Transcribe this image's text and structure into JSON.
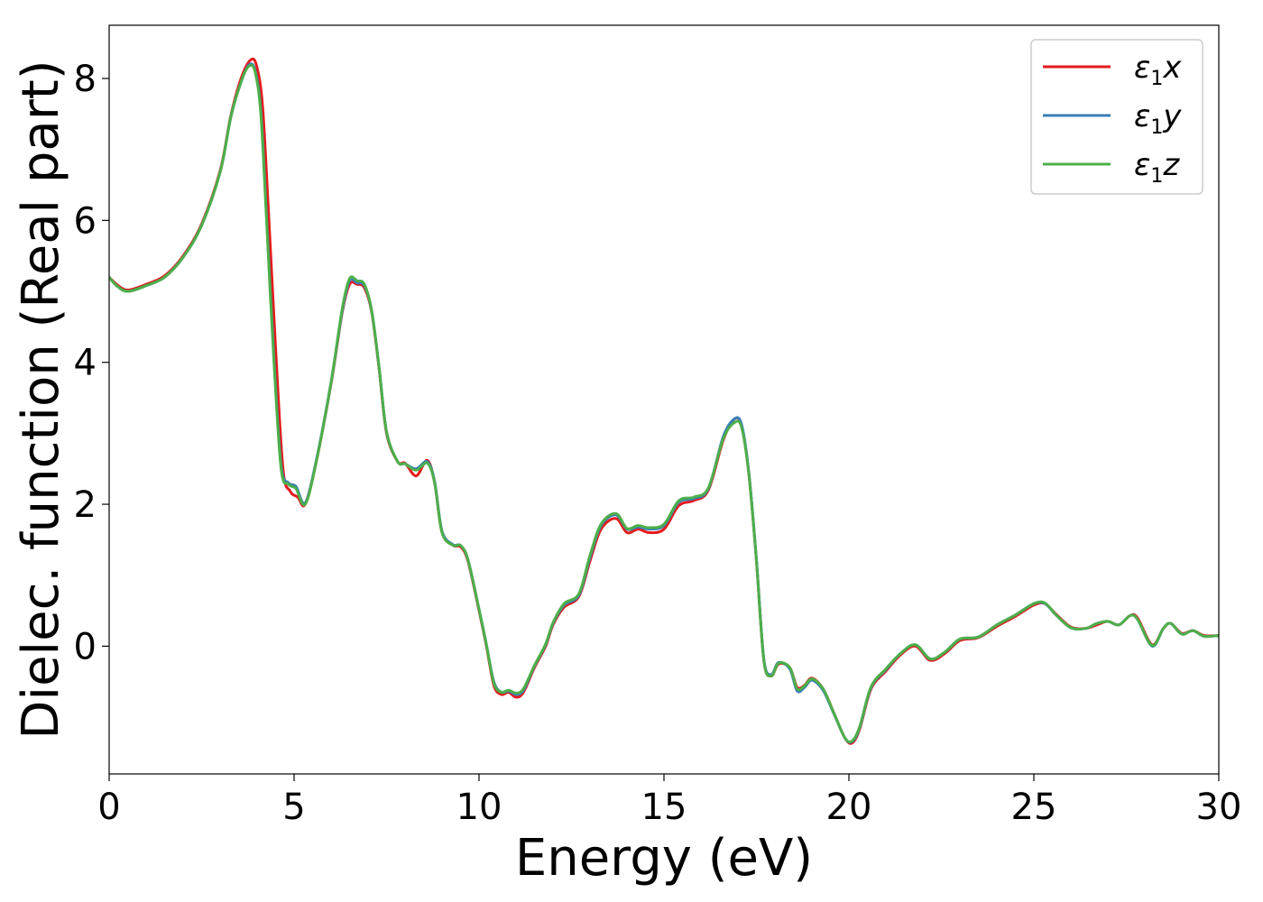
{
  "chart_data": {
    "type": "line",
    "xlabel": "Energy (eV)",
    "ylabel": "Dielec. function (Real part)",
    "xlim": [
      0,
      30
    ],
    "ylim": [
      -1.8,
      8.75
    ],
    "xticks": [
      0,
      5,
      10,
      15,
      20,
      25,
      30
    ],
    "yticks": [
      0,
      2,
      4,
      6,
      8
    ],
    "grid": false,
    "legend_position": "top-right",
    "series": [
      {
        "name": "ε1x",
        "name_base": "ε",
        "name_sub": "1",
        "name_tail": "x",
        "color": "#e41a1c",
        "x": [
          0,
          0.2,
          0.5,
          1.0,
          1.5,
          2.0,
          2.5,
          3.0,
          3.3,
          3.6,
          3.85,
          4.0,
          4.15,
          4.3,
          4.5,
          4.7,
          4.9,
          5.1,
          5.3,
          5.6,
          6.0,
          6.3,
          6.5,
          6.7,
          6.9,
          7.1,
          7.3,
          7.5,
          7.8,
          8.0,
          8.3,
          8.6,
          8.8,
          9.0,
          9.3,
          9.5,
          9.7,
          10.0,
          10.2,
          10.4,
          10.6,
          10.8,
          11.0,
          11.2,
          11.5,
          11.8,
          12.0,
          12.3,
          12.7,
          13.0,
          13.3,
          13.7,
          14.0,
          14.3,
          14.6,
          15.0,
          15.4,
          15.8,
          16.2,
          16.6,
          16.9,
          17.1,
          17.3,
          17.5,
          17.7,
          17.9,
          18.1,
          18.4,
          18.6,
          18.8,
          19.0,
          19.3,
          19.6,
          19.9,
          20.1,
          20.3,
          20.6,
          21.0,
          21.4,
          21.8,
          22.2,
          22.6,
          23.0,
          23.5,
          24.0,
          24.5,
          25.0,
          25.3,
          25.6,
          26.0,
          26.4,
          26.7,
          27.0,
          27.3,
          27.6,
          27.8,
          28.2,
          28.5,
          28.7,
          29.0,
          29.3,
          29.6,
          30.0
        ],
        "y": [
          5.2,
          5.1,
          5.02,
          5.1,
          5.22,
          5.5,
          5.95,
          6.7,
          7.5,
          8.05,
          8.27,
          8.15,
          7.6,
          6.2,
          4.2,
          2.5,
          2.18,
          2.1,
          2.0,
          2.6,
          3.7,
          4.7,
          5.1,
          5.1,
          5.05,
          4.7,
          3.9,
          3.0,
          2.6,
          2.58,
          2.4,
          2.62,
          2.3,
          1.6,
          1.42,
          1.4,
          1.2,
          0.5,
          0.0,
          -0.55,
          -0.68,
          -0.65,
          -0.72,
          -0.65,
          -0.3,
          0.0,
          0.3,
          0.55,
          0.7,
          1.2,
          1.65,
          1.8,
          1.6,
          1.65,
          1.6,
          1.65,
          1.98,
          2.05,
          2.2,
          2.9,
          3.2,
          3.1,
          2.4,
          1.2,
          -0.2,
          -0.42,
          -0.25,
          -0.3,
          -0.58,
          -0.55,
          -0.45,
          -0.6,
          -0.95,
          -1.3,
          -1.36,
          -1.15,
          -0.6,
          -0.35,
          -0.12,
          0.0,
          -0.2,
          -0.1,
          0.08,
          0.12,
          0.28,
          0.42,
          0.58,
          0.6,
          0.45,
          0.27,
          0.25,
          0.3,
          0.35,
          0.3,
          0.43,
          0.4,
          0.02,
          0.25,
          0.32,
          0.18,
          0.22,
          0.15,
          0.15
        ]
      },
      {
        "name": "ε1y",
        "name_base": "ε",
        "name_sub": "1",
        "name_tail": "y",
        "color": "#377eb8",
        "x": [
          0,
          0.2,
          0.5,
          1.0,
          1.5,
          2.0,
          2.5,
          3.0,
          3.3,
          3.6,
          3.8,
          3.95,
          4.1,
          4.25,
          4.45,
          4.65,
          4.85,
          5.05,
          5.3,
          5.6,
          6.0,
          6.3,
          6.5,
          6.7,
          6.9,
          7.1,
          7.3,
          7.5,
          7.8,
          8.0,
          8.3,
          8.6,
          8.8,
          9.0,
          9.3,
          9.5,
          9.7,
          10.0,
          10.2,
          10.4,
          10.6,
          10.8,
          11.0,
          11.2,
          11.5,
          11.8,
          12.0,
          12.3,
          12.7,
          13.0,
          13.3,
          13.7,
          14.0,
          14.3,
          14.6,
          15.0,
          15.4,
          15.8,
          16.2,
          16.6,
          16.9,
          17.1,
          17.3,
          17.5,
          17.7,
          17.9,
          18.1,
          18.4,
          18.6,
          18.8,
          19.0,
          19.3,
          19.6,
          19.9,
          20.1,
          20.3,
          20.6,
          21.0,
          21.4,
          21.8,
          22.2,
          22.6,
          23.0,
          23.5,
          24.0,
          24.5,
          25.0,
          25.3,
          25.6,
          26.0,
          26.4,
          26.7,
          27.0,
          27.3,
          27.6,
          27.8,
          28.2,
          28.5,
          28.7,
          29.0,
          29.3,
          29.6,
          30.0
        ],
        "y": [
          5.2,
          5.08,
          5.0,
          5.08,
          5.2,
          5.48,
          5.93,
          6.68,
          7.48,
          8.0,
          8.2,
          8.1,
          7.55,
          6.1,
          4.1,
          2.55,
          2.3,
          2.25,
          2.02,
          2.62,
          3.72,
          4.72,
          5.15,
          5.12,
          5.08,
          4.72,
          3.92,
          3.02,
          2.6,
          2.57,
          2.5,
          2.6,
          2.32,
          1.62,
          1.43,
          1.42,
          1.22,
          0.52,
          0.02,
          -0.5,
          -0.65,
          -0.63,
          -0.68,
          -0.62,
          -0.28,
          0.02,
          0.32,
          0.58,
          0.72,
          1.25,
          1.7,
          1.85,
          1.65,
          1.68,
          1.65,
          1.7,
          2.03,
          2.08,
          2.22,
          2.95,
          3.2,
          3.12,
          2.42,
          1.22,
          -0.18,
          -0.4,
          -0.23,
          -0.32,
          -0.63,
          -0.58,
          -0.48,
          -0.62,
          -0.96,
          -1.3,
          -1.34,
          -1.13,
          -0.58,
          -0.33,
          -0.1,
          0.02,
          -0.18,
          -0.08,
          0.1,
          0.13,
          0.3,
          0.44,
          0.6,
          0.6,
          0.44,
          0.26,
          0.25,
          0.32,
          0.35,
          0.3,
          0.43,
          0.38,
          0.0,
          0.25,
          0.32,
          0.17,
          0.22,
          0.14,
          0.15
        ]
      },
      {
        "name": "ε1z",
        "name_base": "ε",
        "name_sub": "1",
        "name_tail": "z",
        "color": "#4daf4a",
        "x": [
          0,
          0.2,
          0.5,
          1.0,
          1.5,
          2.0,
          2.5,
          3.0,
          3.3,
          3.6,
          3.8,
          3.95,
          4.1,
          4.25,
          4.45,
          4.65,
          4.85,
          5.05,
          5.3,
          5.6,
          6.0,
          6.3,
          6.5,
          6.7,
          6.9,
          7.1,
          7.3,
          7.5,
          7.8,
          8.0,
          8.3,
          8.6,
          8.8,
          9.0,
          9.3,
          9.5,
          9.7,
          10.0,
          10.2,
          10.4,
          10.6,
          10.8,
          11.0,
          11.2,
          11.5,
          11.8,
          12.0,
          12.3,
          12.7,
          13.0,
          13.3,
          13.7,
          14.0,
          14.3,
          14.6,
          15.0,
          15.4,
          15.8,
          16.2,
          16.6,
          16.9,
          17.1,
          17.3,
          17.5,
          17.7,
          17.9,
          18.1,
          18.4,
          18.6,
          18.8,
          19.0,
          19.3,
          19.6,
          19.9,
          20.1,
          20.3,
          20.6,
          21.0,
          21.4,
          21.8,
          22.2,
          22.6,
          23.0,
          23.5,
          24.0,
          24.5,
          25.0,
          25.3,
          25.6,
          26.0,
          26.4,
          26.7,
          27.0,
          27.3,
          27.6,
          27.8,
          28.2,
          28.5,
          28.7,
          29.0,
          29.3,
          29.6,
          30.0
        ],
        "y": [
          5.2,
          5.08,
          5.0,
          5.08,
          5.2,
          5.48,
          5.93,
          6.68,
          7.48,
          8.0,
          8.18,
          8.08,
          7.5,
          6.05,
          4.05,
          2.5,
          2.28,
          2.22,
          2.0,
          2.6,
          3.72,
          4.75,
          5.18,
          5.15,
          5.1,
          4.72,
          3.92,
          3.02,
          2.6,
          2.57,
          2.48,
          2.58,
          2.3,
          1.6,
          1.42,
          1.42,
          1.22,
          0.52,
          0.02,
          -0.52,
          -0.65,
          -0.62,
          -0.66,
          -0.6,
          -0.27,
          0.03,
          0.33,
          0.6,
          0.74,
          1.28,
          1.72,
          1.87,
          1.66,
          1.7,
          1.67,
          1.72,
          2.05,
          2.1,
          2.23,
          2.92,
          3.15,
          3.08,
          2.4,
          1.2,
          -0.2,
          -0.42,
          -0.24,
          -0.3,
          -0.6,
          -0.56,
          -0.46,
          -0.6,
          -0.95,
          -1.3,
          -1.33,
          -1.12,
          -0.57,
          -0.32,
          -0.1,
          0.02,
          -0.18,
          -0.08,
          0.1,
          0.13,
          0.3,
          0.44,
          0.6,
          0.61,
          0.44,
          0.26,
          0.25,
          0.32,
          0.35,
          0.3,
          0.43,
          0.38,
          0.01,
          0.25,
          0.32,
          0.17,
          0.22,
          0.14,
          0.15
        ]
      }
    ]
  }
}
